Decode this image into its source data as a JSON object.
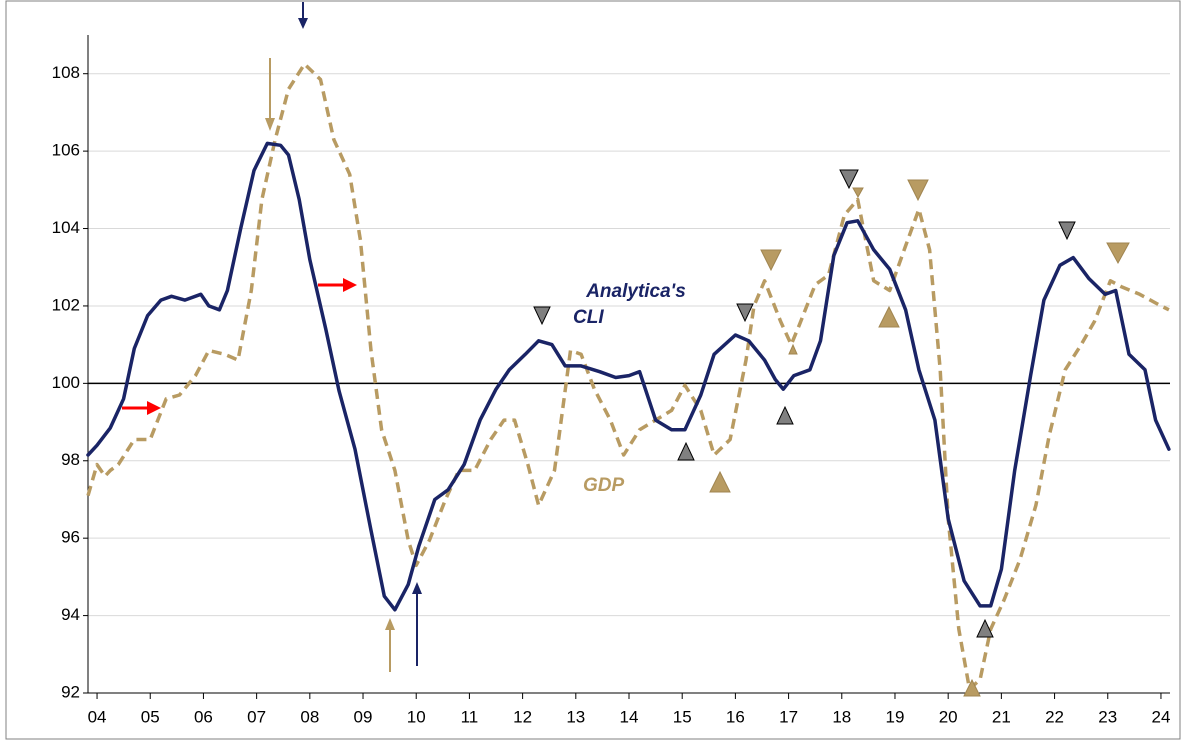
{
  "chart_data": {
    "type": "line",
    "annotations": [
      {
        "lines": [
          "Analytica's",
          "CLI"
        ]
      },
      {
        "lines": [
          "GDP"
        ]
      }
    ],
    "xlim": [
      3.83,
      24.17
    ],
    "xticks": [
      {
        "value": 4,
        "label": "04"
      },
      {
        "value": 5,
        "label": "05"
      },
      {
        "value": 6,
        "label": "06"
      },
      {
        "value": 7,
        "label": "07"
      },
      {
        "value": 8,
        "label": "08"
      },
      {
        "value": 9,
        "label": "09"
      },
      10,
      11,
      12,
      13,
      14,
      15,
      16,
      17,
      18,
      19,
      20,
      21,
      22,
      23,
      24
    ],
    "ylim": [
      92,
      109
    ],
    "yticks": [
      92,
      94,
      96,
      98,
      100,
      102,
      104,
      106,
      108
    ],
    "grid": true,
    "hline": 100,
    "series": [
      {
        "name": "Analytica's CLI",
        "color": "#1a2466",
        "dash": false,
        "x": [
          3.83,
          4.0,
          4.25,
          4.5,
          4.7,
          4.95,
          5.2,
          5.4,
          5.65,
          5.95,
          6.1,
          6.3,
          6.45,
          6.7,
          6.95,
          7.2,
          7.45,
          7.6,
          7.8,
          8.0,
          8.3,
          8.55,
          8.85,
          9.15,
          9.4,
          9.6,
          9.85,
          10.05,
          10.35,
          10.6,
          10.9,
          11.2,
          11.5,
          11.75,
          12.05,
          12.3,
          12.55,
          12.8,
          13.1,
          13.45,
          13.75,
          14.0,
          14.2,
          14.5,
          14.8,
          15.05,
          15.35,
          15.6,
          16.0,
          16.25,
          16.55,
          16.75,
          16.9,
          17.1,
          17.4,
          17.6,
          17.85,
          18.1,
          18.3,
          18.6,
          18.9,
          19.2,
          19.45,
          19.75,
          20.0,
          20.3,
          20.6,
          20.8,
          21.0,
          21.25,
          21.55,
          21.8,
          22.1,
          22.35,
          22.65,
          22.95,
          23.15,
          23.4,
          23.7,
          23.9,
          24.15
        ],
        "values": [
          98.15,
          98.4,
          98.85,
          99.6,
          100.9,
          101.75,
          102.15,
          102.25,
          102.15,
          102.3,
          102.0,
          101.9,
          102.4,
          104.0,
          105.5,
          106.2,
          106.15,
          105.9,
          104.75,
          103.2,
          101.4,
          99.8,
          98.3,
          96.2,
          94.5,
          94.15,
          94.8,
          95.8,
          97.0,
          97.25,
          97.9,
          99.05,
          99.85,
          100.35,
          100.75,
          101.1,
          101.0,
          100.45,
          100.45,
          100.3,
          100.15,
          100.2,
          100.3,
          99.05,
          98.8,
          98.8,
          99.7,
          100.75,
          101.25,
          101.1,
          100.6,
          100.1,
          99.85,
          100.2,
          100.35,
          101.1,
          103.3,
          104.15,
          104.2,
          103.45,
          102.95,
          101.9,
          100.35,
          99.05,
          96.5,
          94.9,
          94.25,
          94.25,
          95.2,
          97.75,
          100.2,
          102.15,
          103.05,
          103.25,
          102.7,
          102.3,
          102.4,
          100.75,
          100.35,
          99.05,
          98.3
        ]
      },
      {
        "name": "GDP",
        "color": "#b89b62",
        "dash": true,
        "x": [
          3.83,
          4.0,
          4.15,
          4.25,
          4.4,
          4.7,
          5.0,
          5.3,
          5.55,
          5.85,
          6.1,
          6.4,
          6.65,
          6.9,
          7.1,
          7.35,
          7.6,
          7.9,
          8.2,
          8.45,
          8.75,
          8.95,
          9.15,
          9.35,
          9.6,
          9.85,
          10.0,
          10.25,
          10.55,
          10.8,
          11.1,
          11.4,
          11.65,
          11.85,
          12.1,
          12.3,
          12.6,
          12.9,
          13.1,
          13.35,
          13.65,
          13.9,
          14.2,
          14.5,
          14.8,
          15.05,
          15.35,
          15.6,
          15.9,
          16.2,
          16.35,
          16.55,
          16.85,
          17.05,
          17.2,
          17.5,
          17.75,
          18.05,
          18.3,
          18.6,
          18.9,
          19.2,
          19.45,
          19.65,
          19.85,
          20.0,
          20.2,
          20.4,
          20.6,
          20.8,
          21.05,
          21.35,
          21.65,
          21.9,
          22.2,
          22.5,
          22.75,
          23.05,
          23.25,
          23.6,
          24.0,
          24.15
        ],
        "values": [
          97.1,
          97.9,
          97.6,
          97.75,
          97.9,
          98.55,
          98.55,
          99.6,
          99.7,
          100.2,
          100.85,
          100.75,
          100.6,
          102.4,
          104.75,
          106.3,
          107.6,
          108.25,
          107.85,
          106.3,
          105.4,
          103.7,
          100.85,
          98.8,
          97.75,
          95.95,
          95.3,
          95.95,
          97.0,
          97.75,
          97.75,
          98.55,
          99.05,
          99.05,
          97.9,
          96.85,
          97.75,
          100.85,
          100.75,
          99.85,
          99.05,
          98.15,
          98.8,
          99.05,
          99.3,
          99.95,
          99.3,
          98.15,
          98.55,
          100.6,
          102.0,
          102.65,
          101.6,
          101.0,
          101.5,
          102.55,
          102.8,
          104.35,
          104.75,
          102.65,
          102.4,
          103.55,
          104.5,
          103.45,
          100.35,
          96.5,
          93.65,
          92.1,
          92.35,
          93.65,
          94.4,
          95.45,
          96.85,
          98.65,
          100.35,
          101.0,
          101.6,
          102.65,
          102.5,
          102.3,
          102.0,
          101.9
        ]
      }
    ]
  }
}
